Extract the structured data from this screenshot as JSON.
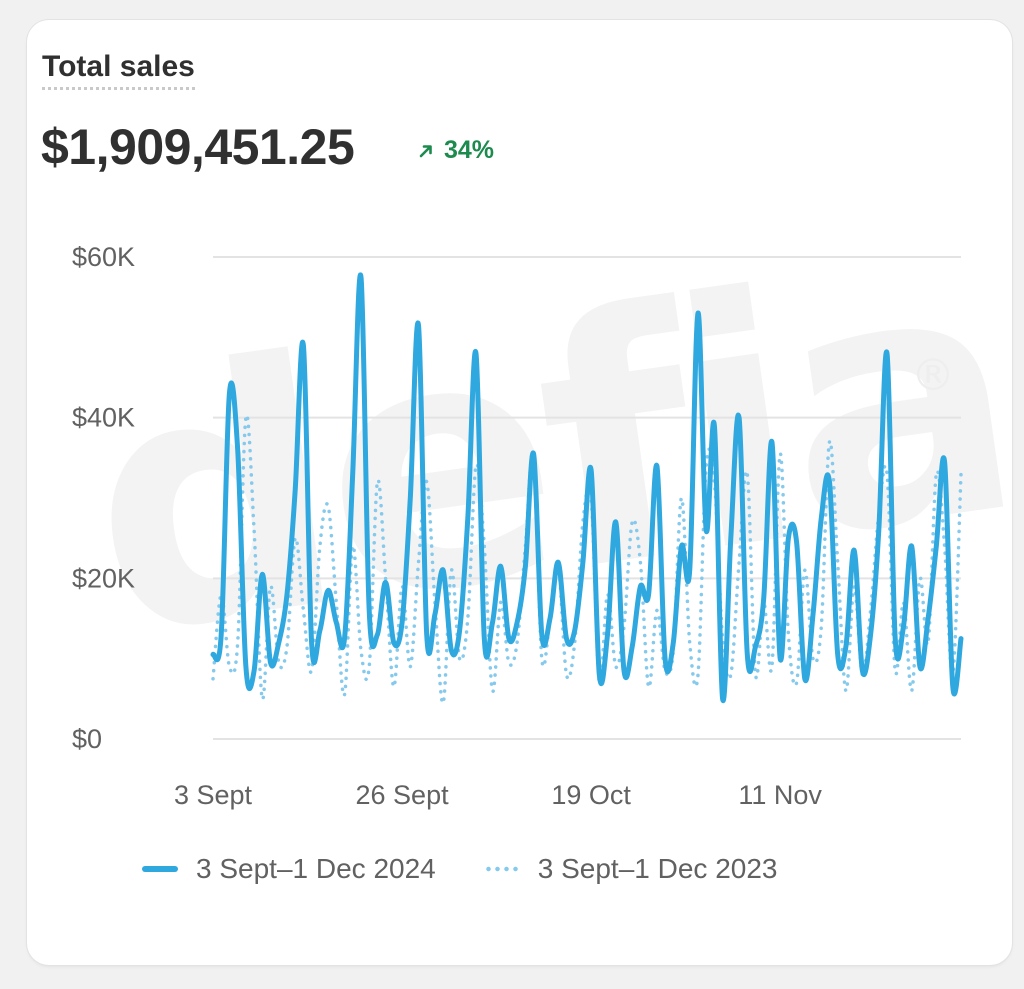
{
  "card": {
    "title": "Total sales",
    "total": "$1,909,451.25",
    "change": "34%"
  },
  "colors": {
    "current": "#2fa7df",
    "previous": "#85c9ec",
    "positive": "#1d8a4e",
    "text": "#303030",
    "muted": "#616161",
    "grid": "#e3e3e3"
  },
  "chart_data": {
    "type": "line",
    "yticks": [
      "$0",
      "$20K",
      "$40K",
      "$60K"
    ],
    "ytick_values": [
      0,
      20000,
      40000,
      60000
    ],
    "ylim": [
      0,
      60000
    ],
    "xticks": [
      "3 Sept",
      "26 Sept",
      "19 Oct",
      "11 Nov"
    ],
    "xtick_index": [
      0,
      23,
      46,
      69
    ],
    "grid": true,
    "legend_position": "bottom",
    "series": [
      {
        "name": "3 Sept–1 Dec 2024",
        "style": "solid",
        "values": [
          10500,
          13000,
          43000,
          36000,
          9000,
          8500,
          20500,
          9500,
          12000,
          18000,
          31000,
          49000,
          12000,
          13500,
          18500,
          14500,
          12500,
          33000,
          57500,
          16000,
          13000,
          19500,
          12000,
          14500,
          30000,
          51500,
          13000,
          15500,
          21000,
          11000,
          13500,
          27500,
          48000,
          12500,
          14500,
          21500,
          12500,
          14500,
          21500,
          35500,
          13000,
          15000,
          22000,
          12500,
          13500,
          22000,
          33500,
          8000,
          13000,
          27000,
          8500,
          11500,
          19000,
          18000,
          34000,
          10000,
          12000,
          24000,
          21000,
          53000,
          26000,
          39000,
          5000,
          25000,
          40000,
          10500,
          11500,
          17500,
          37000,
          10000,
          25000,
          24500,
          7500,
          15500,
          27500,
          32000,
          10500,
          11500,
          23500,
          8500,
          13000,
          26000,
          48000,
          12500,
          14000,
          24000,
          9000,
          15000,
          24000,
          34500,
          6500,
          12500
        ]
      },
      {
        "name": "3 Sept–1 Dec 2023",
        "style": "dotted",
        "values": [
          7500,
          18000,
          9000,
          12000,
          40000,
          26000,
          5000,
          19000,
          9500,
          11500,
          25000,
          16000,
          8500,
          24000,
          29000,
          17000,
          5500,
          24000,
          11000,
          9000,
          32000,
          20000,
          6500,
          19000,
          9000,
          22000,
          32000,
          17000,
          4500,
          21000,
          10000,
          15000,
          34000,
          24000,
          6000,
          17000,
          9500,
          12000,
          24000,
          35500,
          10000,
          15000,
          21500,
          8000,
          12000,
          27000,
          30000,
          7000,
          18000,
          9000,
          14000,
          27000,
          22000,
          6500,
          16000,
          8500,
          11000,
          30000,
          12000,
          8000,
          34000,
          32000,
          12500,
          8000,
          22000,
          33000,
          8000,
          17000,
          9000,
          35500,
          13000,
          7000,
          21000,
          10000,
          14000,
          37000,
          22000,
          6000,
          19000,
          8000,
          16000,
          28000,
          33000,
          8500,
          17000,
          6000,
          20000,
          12000,
          33000,
          24000,
          8000,
          33000
        ]
      }
    ]
  }
}
